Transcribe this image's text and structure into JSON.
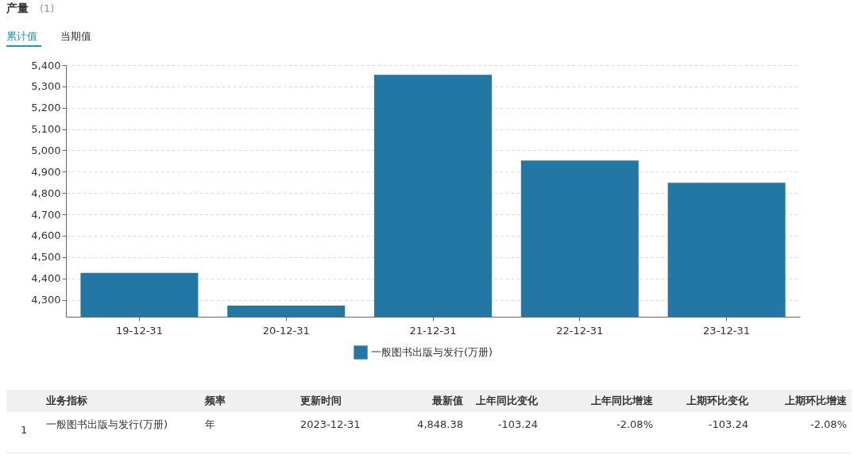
{
  "chart_data": {
    "type": "bar",
    "title": "产量",
    "categories": [
      "19-12-31",
      "20-12-31",
      "21-12-31",
      "22-12-31",
      "23-12-31"
    ],
    "series": [
      {
        "name": "一般图书出版与发行(万册)",
        "color": "#2377a4",
        "values": [
          4426,
          4272,
          5354,
          4952,
          4848
        ]
      }
    ],
    "ylim": [
      4220,
      5400
    ],
    "yticks": [
      {
        "value": 4300,
        "label": "4,300"
      },
      {
        "value": 4400,
        "label": "4,400"
      },
      {
        "value": 4500,
        "label": "4,500"
      },
      {
        "value": 4600,
        "label": "4,600"
      },
      {
        "value": 4700,
        "label": "4,700"
      },
      {
        "value": 4800,
        "label": "4,800"
      },
      {
        "value": 4900,
        "label": "4,900"
      },
      {
        "value": 5000,
        "label": "5,000"
      },
      {
        "value": 5100,
        "label": "5,100"
      },
      {
        "value": 5200,
        "label": "5,200"
      },
      {
        "value": 5300,
        "label": "5,300"
      },
      {
        "value": 5400,
        "label": "5,400"
      }
    ],
    "grid": "y",
    "legend": "bottom",
    "annotations": [
      "(1)",
      "累计值",
      "当期值",
      "业务指标",
      "频率",
      "更新时间",
      "最新值",
      "上年同比变化",
      "上年同比增速",
      "上期环比变化",
      "上期环比增速",
      "1",
      "一般图书出版与发行(万册)",
      "年",
      "2023-12-31",
      "4,848.38",
      "-103.24",
      "-2.08%",
      "-103.24",
      "-2.08%"
    ]
  }
}
